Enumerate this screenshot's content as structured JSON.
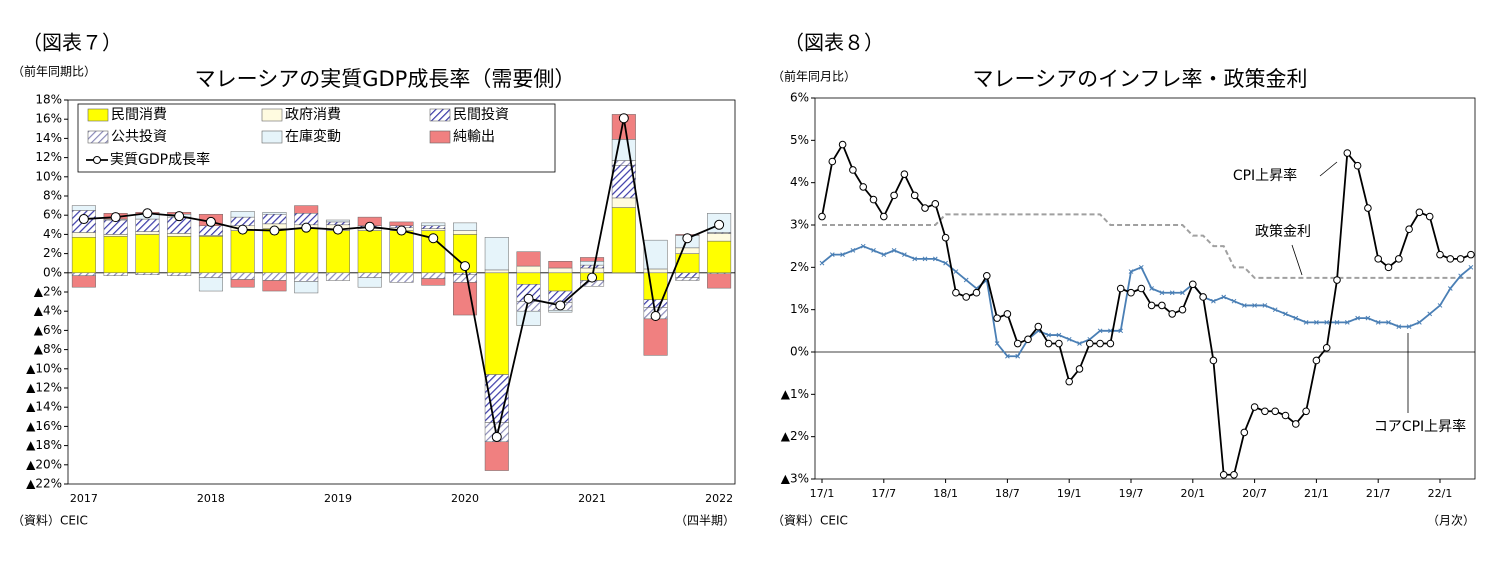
{
  "chart_data": [
    {
      "type": "bar",
      "figure_label": "（図表７）",
      "title": "マレーシアの実質GDP成長率（需要側）",
      "y_label": "（前年同期比）",
      "x_label": "（四半期）",
      "source": "（資料）CEIC",
      "categories": [
        "2017",
        null,
        null,
        null,
        "2018",
        null,
        null,
        null,
        "2019",
        null,
        null,
        null,
        "2020",
        null,
        null,
        null,
        "2021",
        null,
        null,
        null,
        "2022"
      ],
      "series": [
        {
          "name": "民間消費",
          "color": "#ffff00",
          "values": [
            3.7,
            3.8,
            4.0,
            3.8,
            3.8,
            4.4,
            4.6,
            4.6,
            4.4,
            4.4,
            4.4,
            4.4,
            4.0,
            -10.6,
            -1.2,
            -1.9,
            -0.8,
            6.8,
            -2.8,
            2.0,
            3.3
          ]
        },
        {
          "name": "政府消費",
          "color": "#fffbe0",
          "values": [
            0.5,
            0.2,
            0.3,
            0.3,
            0.1,
            0.5,
            0.5,
            0.4,
            0.6,
            0.2,
            0.3,
            0.2,
            0.4,
            0.3,
            0.7,
            0.5,
            0.5,
            1.0,
            0.4,
            0.6,
            0.8
          ]
        },
        {
          "name": "民間投資",
          "color": "#3a3aa8",
          "hatch": true,
          "values": [
            2.3,
            1.5,
            1.3,
            1.7,
            1.0,
            0.9,
            1.0,
            1.2,
            0.3,
            0.3,
            0.2,
            0.3,
            -0.2,
            -5.0,
            -1.8,
            -1.2,
            0.3,
            3.4,
            -0.8,
            -0.5,
            0.1
          ]
        },
        {
          "name": "公共投資",
          "color": "#8a8ab8",
          "hatch": true,
          "values": [
            -0.3,
            -0.3,
            -0.2,
            -0.3,
            -0.5,
            -0.7,
            -0.8,
            -0.9,
            -0.8,
            -0.5,
            -1.0,
            -0.6,
            -0.8,
            -2.0,
            -1.0,
            -0.8,
            -0.6,
            0.5,
            -1.2,
            -0.3,
            -0.1
          ]
        },
        {
          "name": "在庫変動",
          "color": "#e6f4fa",
          "values": [
            0.5,
            0.1,
            0.5,
            0.3,
            -1.4,
            0.6,
            0.2,
            -1.2,
            0.2,
            -1.0,
            0.0,
            0.3,
            0.8,
            3.4,
            -1.5,
            -0.2,
            0.4,
            2.2,
            3.0,
            1.3,
            2.0
          ]
        },
        {
          "name": "純輸出",
          "color": "#f08080",
          "values": [
            -1.2,
            0.6,
            0.2,
            0.2,
            1.2,
            -0.8,
            -1.1,
            0.8,
            0.0,
            0.9,
            0.4,
            -0.7,
            -3.4,
            -3.0,
            1.5,
            0.7,
            0.4,
            2.6,
            -3.8,
            0.1,
            -1.5
          ]
        },
        {
          "name": "実質GDP成長率",
          "type": "line",
          "color": "#000000",
          "marker": "circle",
          "values": [
            5.6,
            5.8,
            6.2,
            5.9,
            5.3,
            4.5,
            4.4,
            4.7,
            4.5,
            4.8,
            4.4,
            3.6,
            0.7,
            -17.1,
            -2.7,
            -3.4,
            -0.5,
            16.1,
            -4.5,
            3.6,
            5.0
          ]
        }
      ],
      "ylim": [
        -22,
        18
      ],
      "yticks": [
        {
          "value": -22,
          "label": "▲22%"
        },
        {
          "value": -20,
          "label": "▲20%"
        },
        {
          "value": -18,
          "label": "▲18%"
        },
        {
          "value": -16,
          "label": "▲16%"
        },
        {
          "value": -14,
          "label": "▲14%"
        },
        {
          "value": -12,
          "label": "▲12%"
        },
        {
          "value": -10,
          "label": "▲10%"
        },
        {
          "value": -8,
          "label": "▲8%"
        },
        {
          "value": -6,
          "label": "▲6%"
        },
        {
          "value": -4,
          "label": "▲4%"
        },
        {
          "value": -2,
          "label": "▲2%"
        },
        {
          "value": 0,
          "label": "0%"
        },
        {
          "value": 2,
          "label": "2%"
        },
        {
          "value": 4,
          "label": "4%"
        },
        {
          "value": 6,
          "label": "6%"
        },
        {
          "value": 8,
          "label": "8%"
        },
        {
          "value": 10,
          "label": "10%"
        },
        {
          "value": 12,
          "label": "12%"
        },
        {
          "value": 14,
          "label": "14%"
        },
        {
          "value": 16,
          "label": "16%"
        },
        {
          "value": 18,
          "label": "18%"
        }
      ],
      "legend": "top-left"
    },
    {
      "type": "line",
      "figure_label": "（図表８）",
      "title": "マレーシアのインフレ率・政策金利",
      "y_label": "（前年同月比）",
      "x_label": "（月次）",
      "source": "（資料）CEIC",
      "categories": [
        "17/1",
        null,
        null,
        null,
        null,
        null,
        "17/7",
        null,
        null,
        null,
        null,
        null,
        "18/1",
        null,
        null,
        null,
        null,
        null,
        "18/7",
        null,
        null,
        null,
        null,
        null,
        "19/1",
        null,
        null,
        null,
        null,
        null,
        "19/7",
        null,
        null,
        null,
        null,
        null,
        "20/1",
        null,
        null,
        null,
        null,
        null,
        "20/7",
        null,
        null,
        null,
        null,
        null,
        "21/1",
        null,
        null,
        null,
        null,
        null,
        "21/7",
        null,
        null,
        null,
        null,
        null,
        "22/1",
        null,
        null,
        null
      ],
      "series": [
        {
          "name": "CPI上昇率",
          "color": "#000000",
          "marker": "circle",
          "values": [
            3.2,
            4.5,
            4.9,
            4.3,
            3.9,
            3.6,
            3.2,
            3.7,
            4.2,
            3.7,
            3.4,
            3.5,
            2.7,
            1.4,
            1.3,
            1.4,
            1.8,
            0.8,
            0.9,
            0.2,
            0.3,
            0.6,
            0.2,
            0.2,
            -0.7,
            -0.4,
            0.2,
            0.2,
            0.2,
            1.5,
            1.4,
            1.5,
            1.1,
            1.1,
            0.9,
            1.0,
            1.6,
            1.3,
            -0.2,
            -2.9,
            -2.9,
            -1.9,
            -1.3,
            -1.4,
            -1.4,
            -1.5,
            -1.7,
            -1.4,
            -0.2,
            0.1,
            1.7,
            4.7,
            4.4,
            3.4,
            2.2,
            2.0,
            2.2,
            2.9,
            3.3,
            3.2,
            2.3,
            2.2,
            2.2,
            2.3
          ]
        },
        {
          "name": "コアCPI上昇率",
          "color": "#4a7fb5",
          "marker": "x",
          "values": [
            2.1,
            2.3,
            2.3,
            2.4,
            2.5,
            2.4,
            2.3,
            2.4,
            2.3,
            2.2,
            2.2,
            2.2,
            2.1,
            1.9,
            1.7,
            1.5,
            1.7,
            0.2,
            -0.1,
            -0.1,
            0.3,
            0.5,
            0.4,
            0.4,
            0.3,
            0.2,
            0.3,
            0.5,
            0.5,
            0.5,
            1.9,
            2.0,
            1.5,
            1.4,
            1.4,
            1.4,
            1.6,
            1.3,
            1.2,
            1.3,
            1.2,
            1.1,
            1.1,
            1.1,
            1.0,
            0.9,
            0.8,
            0.7,
            0.7,
            0.7,
            0.7,
            0.7,
            0.8,
            0.8,
            0.7,
            0.7,
            0.6,
            0.6,
            0.7,
            0.9,
            1.1,
            1.5,
            1.8,
            2.0
          ]
        },
        {
          "name": "政策金利",
          "color": "#a0a0a0",
          "dash": true,
          "values": [
            3.0,
            3.0,
            3.0,
            3.0,
            3.0,
            3.0,
            3.0,
            3.0,
            3.0,
            3.0,
            3.0,
            3.0,
            3.25,
            3.25,
            3.25,
            3.25,
            3.25,
            3.25,
            3.25,
            3.25,
            3.25,
            3.25,
            3.25,
            3.25,
            3.25,
            3.25,
            3.25,
            3.25,
            3.0,
            3.0,
            3.0,
            3.0,
            3.0,
            3.0,
            3.0,
            3.0,
            2.75,
            2.75,
            2.5,
            2.5,
            2.0,
            2.0,
            1.75,
            1.75,
            1.75,
            1.75,
            1.75,
            1.75,
            1.75,
            1.75,
            1.75,
            1.75,
            1.75,
            1.75,
            1.75,
            1.75,
            1.75,
            1.75,
            1.75,
            1.75,
            1.75,
            1.75,
            1.75,
            1.75
          ]
        }
      ],
      "ylim": [
        -3,
        6
      ],
      "yticks": [
        {
          "value": -3,
          "label": "▲3%"
        },
        {
          "value": -2,
          "label": "▲2%"
        },
        {
          "value": -1,
          "label": "▲1%"
        },
        {
          "value": 0,
          "label": "0%"
        },
        {
          "value": 1,
          "label": "1%"
        },
        {
          "value": 2,
          "label": "2%"
        },
        {
          "value": 3,
          "label": "3%"
        },
        {
          "value": 4,
          "label": "4%"
        },
        {
          "value": 5,
          "label": "5%"
        },
        {
          "value": 6,
          "label": "6%"
        }
      ]
    }
  ]
}
